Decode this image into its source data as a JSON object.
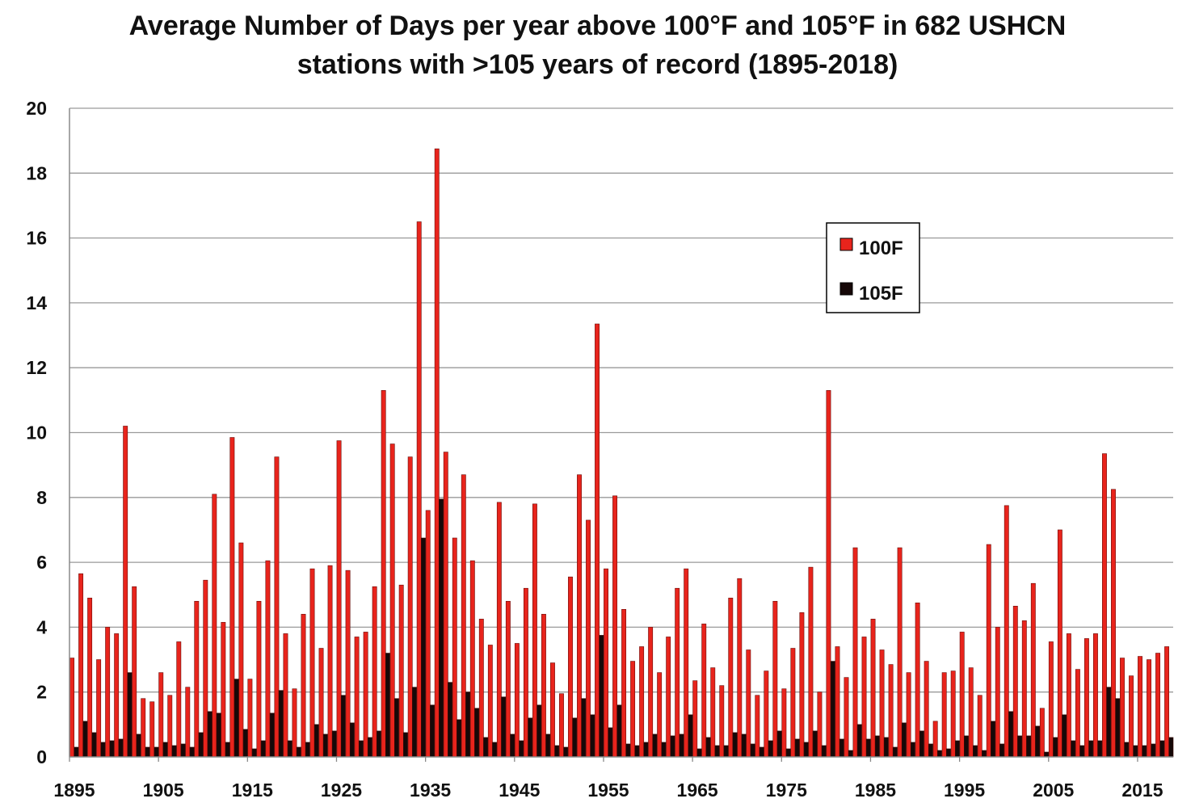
{
  "chart_data": {
    "type": "bar",
    "title": "Average Number of Days per year above 100°F and 105°F in 682 USHCN stations with >105 years of record (1895-2018)",
    "title_lines": [
      "Average Number of Days per year above 100°F and 105°F in 682 USHCN",
      "stations with >105 years of record (1895-2018)"
    ],
    "xlabel": "",
    "ylabel": "",
    "ylim": [
      0,
      20
    ],
    "yticks": [
      0,
      2,
      4,
      6,
      8,
      10,
      12,
      14,
      16,
      18,
      20
    ],
    "xtick_labels": [
      1895,
      1905,
      1915,
      1925,
      1935,
      1945,
      1955,
      1965,
      1975,
      1985,
      1995,
      2005,
      2015
    ],
    "grid": "horizontal",
    "legend": "upper-center-right",
    "categories": [
      1895,
      1896,
      1897,
      1898,
      1899,
      1900,
      1901,
      1902,
      1903,
      1904,
      1905,
      1906,
      1907,
      1908,
      1909,
      1910,
      1911,
      1912,
      1913,
      1914,
      1915,
      1916,
      1917,
      1918,
      1919,
      1920,
      1921,
      1922,
      1923,
      1924,
      1925,
      1926,
      1927,
      1928,
      1929,
      1930,
      1931,
      1932,
      1933,
      1934,
      1935,
      1936,
      1937,
      1938,
      1939,
      1940,
      1941,
      1942,
      1943,
      1944,
      1945,
      1946,
      1947,
      1948,
      1949,
      1950,
      1951,
      1952,
      1953,
      1954,
      1955,
      1956,
      1957,
      1958,
      1959,
      1960,
      1961,
      1962,
      1963,
      1964,
      1965,
      1966,
      1967,
      1968,
      1969,
      1970,
      1971,
      1972,
      1973,
      1974,
      1975,
      1976,
      1977,
      1978,
      1979,
      1980,
      1981,
      1982,
      1983,
      1984,
      1985,
      1986,
      1987,
      1988,
      1989,
      1990,
      1991,
      1992,
      1993,
      1994,
      1995,
      1996,
      1997,
      1998,
      1999,
      2000,
      2001,
      2002,
      2003,
      2004,
      2005,
      2006,
      2007,
      2008,
      2009,
      2010,
      2011,
      2012,
      2013,
      2014,
      2015,
      2016,
      2017,
      2018
    ],
    "series": [
      {
        "name": "100F",
        "color": "#e8241c",
        "values": [
          3.05,
          5.65,
          4.9,
          3.0,
          4.0,
          3.8,
          10.2,
          5.25,
          1.8,
          1.7,
          2.6,
          1.9,
          3.55,
          2.15,
          4.8,
          5.45,
          8.1,
          4.15,
          9.85,
          6.6,
          2.4,
          4.8,
          6.05,
          9.25,
          3.8,
          2.1,
          4.4,
          5.8,
          3.35,
          5.9,
          9.75,
          5.75,
          3.7,
          3.85,
          5.25,
          11.3,
          9.65,
          5.3,
          9.25,
          16.5,
          7.6,
          18.75,
          9.4,
          6.75,
          8.7,
          6.05,
          4.25,
          3.45,
          7.85,
          4.8,
          3.5,
          5.2,
          7.8,
          4.4,
          2.9,
          1.95,
          5.55,
          8.7,
          7.3,
          13.35,
          5.8,
          8.05,
          4.55,
          2.95,
          3.4,
          4.0,
          2.6,
          3.7,
          5.2,
          5.8,
          2.35,
          4.1,
          2.75,
          2.2,
          4.9,
          5.5,
          3.3,
          1.9,
          2.65,
          4.8,
          2.1,
          3.35,
          4.45,
          5.85,
          2.0,
          11.3,
          3.4,
          2.45,
          6.45,
          3.7,
          4.25,
          3.3,
          2.85,
          6.45,
          2.6,
          4.75,
          2.95,
          1.1,
          2.6,
          2.65,
          3.85,
          2.75,
          1.9,
          6.55,
          4.0,
          7.75,
          4.65,
          4.2,
          5.35,
          1.5,
          3.55,
          7.0,
          3.8,
          2.7,
          3.65,
          3.8,
          9.35,
          8.25,
          3.05,
          2.5,
          3.1,
          3.0,
          3.2,
          3.4
        ]
      },
      {
        "name": "105F",
        "color": "#160808",
        "values": [
          0.3,
          1.1,
          0.75,
          0.45,
          0.5,
          0.55,
          2.6,
          0.7,
          0.3,
          0.3,
          0.45,
          0.35,
          0.4,
          0.3,
          0.75,
          1.4,
          1.35,
          0.45,
          2.4,
          0.85,
          0.25,
          0.5,
          1.35,
          2.05,
          0.5,
          0.3,
          0.45,
          1.0,
          0.7,
          0.8,
          1.9,
          1.05,
          0.5,
          0.6,
          0.8,
          3.2,
          1.8,
          0.75,
          2.15,
          6.75,
          1.6,
          7.95,
          2.3,
          1.15,
          2.0,
          1.5,
          0.6,
          0.45,
          1.85,
          0.7,
          0.5,
          1.2,
          1.6,
          0.7,
          0.35,
          0.3,
          1.2,
          1.8,
          1.3,
          3.75,
          0.9,
          1.6,
          0.4,
          0.35,
          0.45,
          0.7,
          0.45,
          0.65,
          0.7,
          1.3,
          0.25,
          0.6,
          0.35,
          0.35,
          0.75,
          0.7,
          0.4,
          0.3,
          0.5,
          0.8,
          0.25,
          0.55,
          0.45,
          0.8,
          0.35,
          2.95,
          0.55,
          0.2,
          1.0,
          0.55,
          0.65,
          0.6,
          0.3,
          1.05,
          0.45,
          0.8,
          0.4,
          0.2,
          0.25,
          0.5,
          0.65,
          0.35,
          0.2,
          1.1,
          0.4,
          1.4,
          0.65,
          0.65,
          0.95,
          0.15,
          0.6,
          1.3,
          0.5,
          0.35,
          0.5,
          0.5,
          2.15,
          1.8,
          0.45,
          0.35,
          0.35,
          0.4,
          0.5,
          0.6
        ]
      }
    ]
  }
}
